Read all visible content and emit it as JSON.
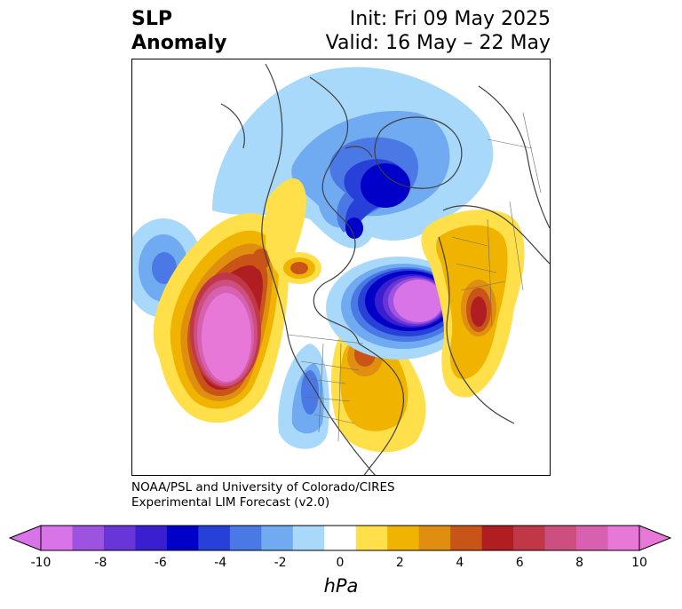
{
  "title": {
    "line1_left": "SLP",
    "line2_left": "Anomaly",
    "line1_right": "Init: Fri 09 May 2025",
    "line2_right": "Valid: 16 May – 22 May"
  },
  "credit": {
    "line1": "NOAA/PSL and University of Colorado/CIRES",
    "line2": "Experimental LIM Forecast (v2.0)"
  },
  "colorbar": {
    "unit": "hPa",
    "ticks": [
      "-10",
      "-8",
      "-6",
      "-4",
      "-2",
      "0",
      "2",
      "4",
      "6",
      "8",
      "10"
    ],
    "colors": [
      "#d874e8",
      "#9d52e0",
      "#6a35d8",
      "#3a1fcf",
      "#0000c8",
      "#2640d8",
      "#4a78e4",
      "#70aaf0",
      "#a8d8fa",
      "#ffffff",
      "#ffe04a",
      "#f0b400",
      "#e08e10",
      "#c85418",
      "#b01e22",
      "#c03848",
      "#cc4f80",
      "#d860b0",
      "#e878d8"
    ],
    "min_extend_color": "#d874e8",
    "max_extend_color": "#e878d8"
  },
  "map": {
    "projection": "north-polar-stereographic",
    "field": "SLP anomaly",
    "features": [
      {
        "name": "north-pacific-positive",
        "sign": "positive",
        "peak": 10
      },
      {
        "name": "north-atlantic-negative",
        "sign": "negative",
        "peak": -10
      },
      {
        "name": "arctic-negative",
        "sign": "negative",
        "peak": -6
      },
      {
        "name": "europe-positive",
        "sign": "positive",
        "peak": 6
      },
      {
        "name": "eastern-north-america-positive",
        "sign": "positive",
        "peak": 6
      },
      {
        "name": "central-north-america-negative",
        "sign": "negative",
        "peak": -4
      },
      {
        "name": "far-pacific-negative",
        "sign": "negative",
        "peak": -4
      }
    ]
  }
}
